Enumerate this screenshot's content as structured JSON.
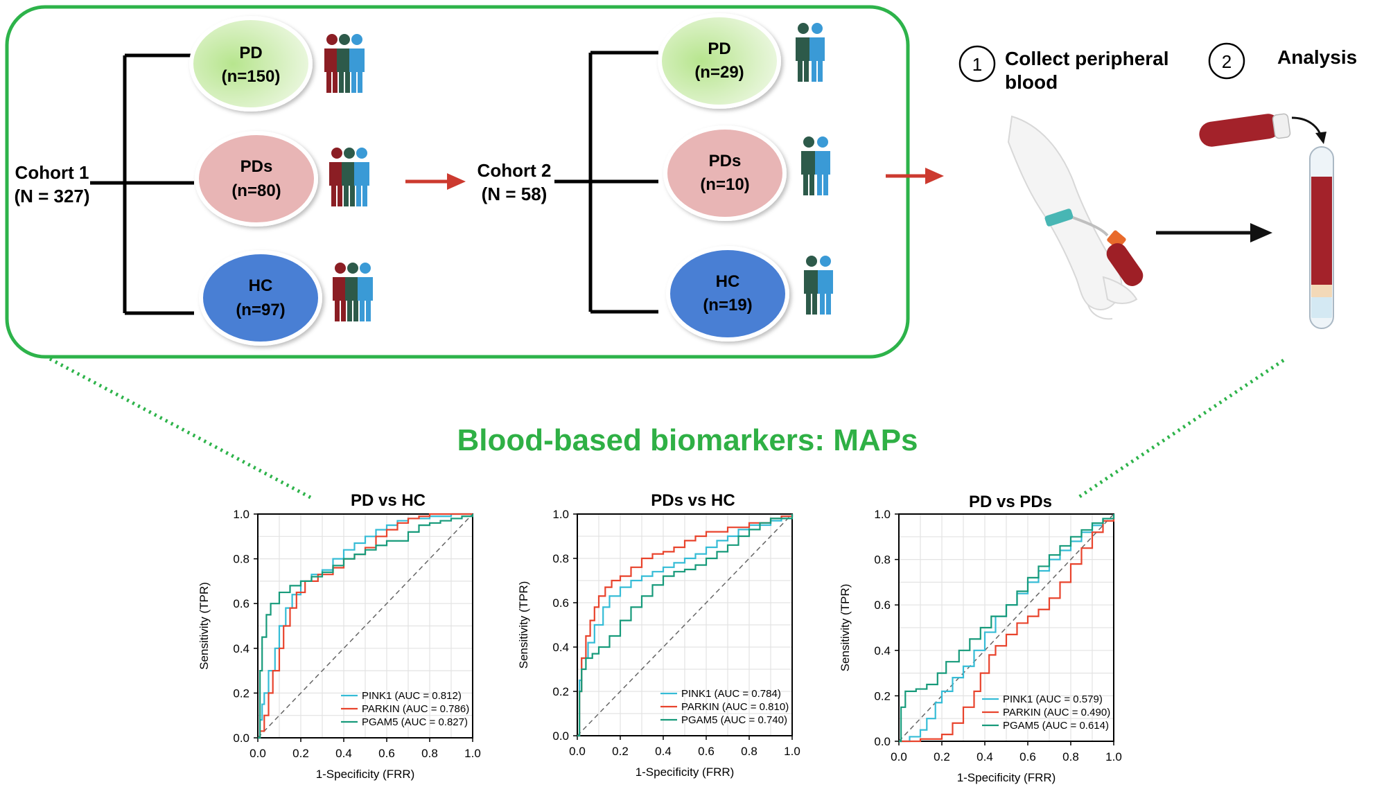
{
  "colors": {
    "green_frame": "#2db34a",
    "pd_fill": "#d9f2c4",
    "pds_fill": "#e8b5b5",
    "hc_fill": "#4a7fd4",
    "arrow_red": "#cc3a2f",
    "person_red": "#8b1e24",
    "person_dark": "#2d5a4a",
    "person_blue": "#3a9ad6",
    "title_green": "#2fb045",
    "pink1": "#35bcd6",
    "parkin": "#e8432c",
    "pgam5": "#169a7a"
  },
  "cohort1": {
    "label": "Cohort 1",
    "n": "(N = 327)",
    "groups": [
      {
        "name": "PD",
        "n": "(n=150)",
        "icon": "group-three-people-icon"
      },
      {
        "name": "PDs",
        "n": "(n=80)",
        "icon": "group-three-people-icon"
      },
      {
        "name": "HC",
        "n": "(n=97)",
        "icon": "group-three-people-icon"
      }
    ]
  },
  "cohort2": {
    "label": "Cohort 2",
    "n": "(N = 58)",
    "groups": [
      {
        "name": "PD",
        "n": "(n=29)",
        "icon": "two-people-icon"
      },
      {
        "name": "PDs",
        "n": "(n=10)",
        "icon": "two-people-icon"
      },
      {
        "name": "HC",
        "n": "(n=19)",
        "icon": "two-people-icon"
      }
    ]
  },
  "steps": [
    {
      "number": "1",
      "line1": "Collect peripheral",
      "line2": "blood",
      "icon": "arm-blood-draw-icon"
    },
    {
      "number": "2",
      "line1": "Analysis",
      "line2": "",
      "icon": "blood-tube-icon"
    }
  ],
  "main_title": "Blood-based biomarkers: MAPs",
  "chart_data": [
    {
      "type": "line",
      "title": "PD vs HC",
      "xlabel": "1-Specificity (FRR)",
      "ylabel": "Sensitivity (TPR)",
      "xlim": [
        0,
        1
      ],
      "ylim": [
        0,
        1
      ],
      "ticks": [
        "0.0",
        "0.2",
        "0.4",
        "0.6",
        "0.8",
        "1.0"
      ],
      "grid": true,
      "legend_position": "bottom-right",
      "diagonal": true,
      "series": [
        {
          "name": "PINK1 (AUC = 0.812)",
          "color": "#35bcd6",
          "x": [
            0,
            0.01,
            0.02,
            0.03,
            0.05,
            0.08,
            0.1,
            0.13,
            0.16,
            0.2,
            0.25,
            0.3,
            0.35,
            0.4,
            0.45,
            0.5,
            0.55,
            0.6,
            0.65,
            0.7,
            0.8,
            0.9,
            1
          ],
          "y": [
            0,
            0.08,
            0.15,
            0.2,
            0.3,
            0.4,
            0.5,
            0.58,
            0.64,
            0.7,
            0.73,
            0.75,
            0.8,
            0.84,
            0.87,
            0.9,
            0.93,
            0.95,
            0.97,
            0.98,
            0.99,
            1,
            1
          ]
        },
        {
          "name": "PARKIN (AUC = 0.786)",
          "color": "#e8432c",
          "x": [
            0,
            0.01,
            0.03,
            0.05,
            0.07,
            0.1,
            0.12,
            0.15,
            0.18,
            0.22,
            0.28,
            0.35,
            0.4,
            0.45,
            0.5,
            0.55,
            0.6,
            0.65,
            0.7,
            0.75,
            0.8,
            0.9,
            1
          ],
          "y": [
            0,
            0.03,
            0.1,
            0.2,
            0.3,
            0.4,
            0.5,
            0.58,
            0.65,
            0.7,
            0.73,
            0.76,
            0.8,
            0.82,
            0.85,
            0.9,
            0.93,
            0.96,
            0.98,
            0.99,
            1,
            1,
            1
          ]
        },
        {
          "name": "PGAM5 (AUC = 0.827)",
          "color": "#169a7a",
          "x": [
            0,
            0.01,
            0.02,
            0.04,
            0.06,
            0.1,
            0.15,
            0.2,
            0.25,
            0.3,
            0.35,
            0.4,
            0.45,
            0.5,
            0.55,
            0.6,
            0.7,
            0.75,
            0.8,
            0.85,
            0.9,
            0.95,
            1
          ],
          "y": [
            0,
            0.3,
            0.45,
            0.55,
            0.6,
            0.65,
            0.68,
            0.7,
            0.72,
            0.74,
            0.77,
            0.8,
            0.82,
            0.84,
            0.86,
            0.88,
            0.92,
            0.95,
            0.96,
            0.97,
            0.98,
            0.99,
            1
          ]
        }
      ]
    },
    {
      "type": "line",
      "title": "PDs vs HC",
      "xlabel": "1-Specificity (FRR)",
      "ylabel": "Sensitivity (TPR)",
      "xlim": [
        0,
        1
      ],
      "ylim": [
        0,
        1
      ],
      "ticks": [
        "0.0",
        "0.2",
        "0.4",
        "0.6",
        "0.8",
        "1.0"
      ],
      "grid": true,
      "legend_position": "bottom-right",
      "diagonal": true,
      "series": [
        {
          "name": "PINK1 (AUC = 0.784)",
          "color": "#35bcd6",
          "x": [
            0,
            0.01,
            0.02,
            0.05,
            0.08,
            0.12,
            0.15,
            0.2,
            0.25,
            0.3,
            0.35,
            0.4,
            0.45,
            0.5,
            0.55,
            0.6,
            0.65,
            0.7,
            0.75,
            0.8,
            0.9,
            0.95,
            1
          ],
          "y": [
            0,
            0.25,
            0.35,
            0.42,
            0.5,
            0.58,
            0.63,
            0.67,
            0.7,
            0.72,
            0.74,
            0.76,
            0.78,
            0.8,
            0.82,
            0.85,
            0.88,
            0.9,
            0.93,
            0.95,
            0.97,
            0.99,
            1
          ]
        },
        {
          "name": "PARKIN (AUC = 0.810)",
          "color": "#e8432c",
          "x": [
            0,
            0.01,
            0.02,
            0.04,
            0.06,
            0.08,
            0.1,
            0.13,
            0.16,
            0.2,
            0.25,
            0.3,
            0.35,
            0.4,
            0.45,
            0.5,
            0.55,
            0.6,
            0.7,
            0.8,
            0.9,
            0.95,
            1
          ],
          "y": [
            0,
            0.2,
            0.35,
            0.45,
            0.52,
            0.58,
            0.63,
            0.67,
            0.7,
            0.72,
            0.76,
            0.8,
            0.82,
            0.83,
            0.85,
            0.88,
            0.9,
            0.92,
            0.94,
            0.96,
            0.98,
            0.99,
            1
          ]
        },
        {
          "name": "PGAM5 (AUC = 0.740)",
          "color": "#169a7a",
          "x": [
            0,
            0.01,
            0.02,
            0.04,
            0.07,
            0.1,
            0.15,
            0.2,
            0.25,
            0.3,
            0.35,
            0.4,
            0.45,
            0.5,
            0.55,
            0.6,
            0.65,
            0.7,
            0.75,
            0.8,
            0.85,
            0.9,
            1
          ],
          "y": [
            0,
            0.2,
            0.3,
            0.35,
            0.37,
            0.4,
            0.45,
            0.52,
            0.58,
            0.63,
            0.68,
            0.72,
            0.74,
            0.75,
            0.77,
            0.8,
            0.83,
            0.86,
            0.9,
            0.93,
            0.96,
            0.98,
            1
          ]
        }
      ]
    },
    {
      "type": "line",
      "title": "PD vs PDs",
      "xlabel": "1-Specificity (FRR)",
      "ylabel": "Sensitivity (TPR)",
      "xlim": [
        0,
        1
      ],
      "ylim": [
        0,
        1
      ],
      "ticks": [
        "0.0",
        "0.2",
        "0.4",
        "0.6",
        "0.8",
        "1.0"
      ],
      "grid": true,
      "legend_position": "bottom-right",
      "diagonal": true,
      "series": [
        {
          "name": "PINK1 (AUC = 0.579)",
          "color": "#35bcd6",
          "x": [
            0,
            0.05,
            0.1,
            0.13,
            0.17,
            0.2,
            0.25,
            0.3,
            0.35,
            0.4,
            0.45,
            0.5,
            0.55,
            0.6,
            0.65,
            0.7,
            0.75,
            0.8,
            0.85,
            0.9,
            0.95,
            1
          ],
          "y": [
            0,
            0.02,
            0.05,
            0.1,
            0.17,
            0.22,
            0.28,
            0.33,
            0.4,
            0.48,
            0.55,
            0.6,
            0.65,
            0.7,
            0.75,
            0.8,
            0.84,
            0.88,
            0.92,
            0.95,
            0.98,
            1
          ]
        },
        {
          "name": "PARKIN (AUC = 0.490)",
          "color": "#e8432c",
          "x": [
            0,
            0.1,
            0.2,
            0.25,
            0.3,
            0.35,
            0.38,
            0.42,
            0.45,
            0.5,
            0.55,
            0.6,
            0.65,
            0.7,
            0.75,
            0.8,
            0.85,
            0.9,
            0.95,
            1
          ],
          "y": [
            0,
            0.01,
            0.03,
            0.08,
            0.15,
            0.22,
            0.3,
            0.38,
            0.42,
            0.47,
            0.52,
            0.55,
            0.58,
            0.63,
            0.7,
            0.78,
            0.85,
            0.92,
            0.97,
            1
          ]
        },
        {
          "name": "PGAM5 (AUC = 0.614)",
          "color": "#169a7a",
          "x": [
            0,
            0.01,
            0.03,
            0.08,
            0.13,
            0.18,
            0.22,
            0.28,
            0.33,
            0.38,
            0.43,
            0.5,
            0.55,
            0.6,
            0.65,
            0.7,
            0.75,
            0.8,
            0.85,
            0.9,
            0.95,
            1
          ],
          "y": [
            0,
            0.15,
            0.22,
            0.23,
            0.25,
            0.3,
            0.35,
            0.4,
            0.45,
            0.5,
            0.55,
            0.6,
            0.66,
            0.72,
            0.77,
            0.82,
            0.86,
            0.9,
            0.93,
            0.96,
            0.98,
            1
          ]
        }
      ]
    }
  ]
}
